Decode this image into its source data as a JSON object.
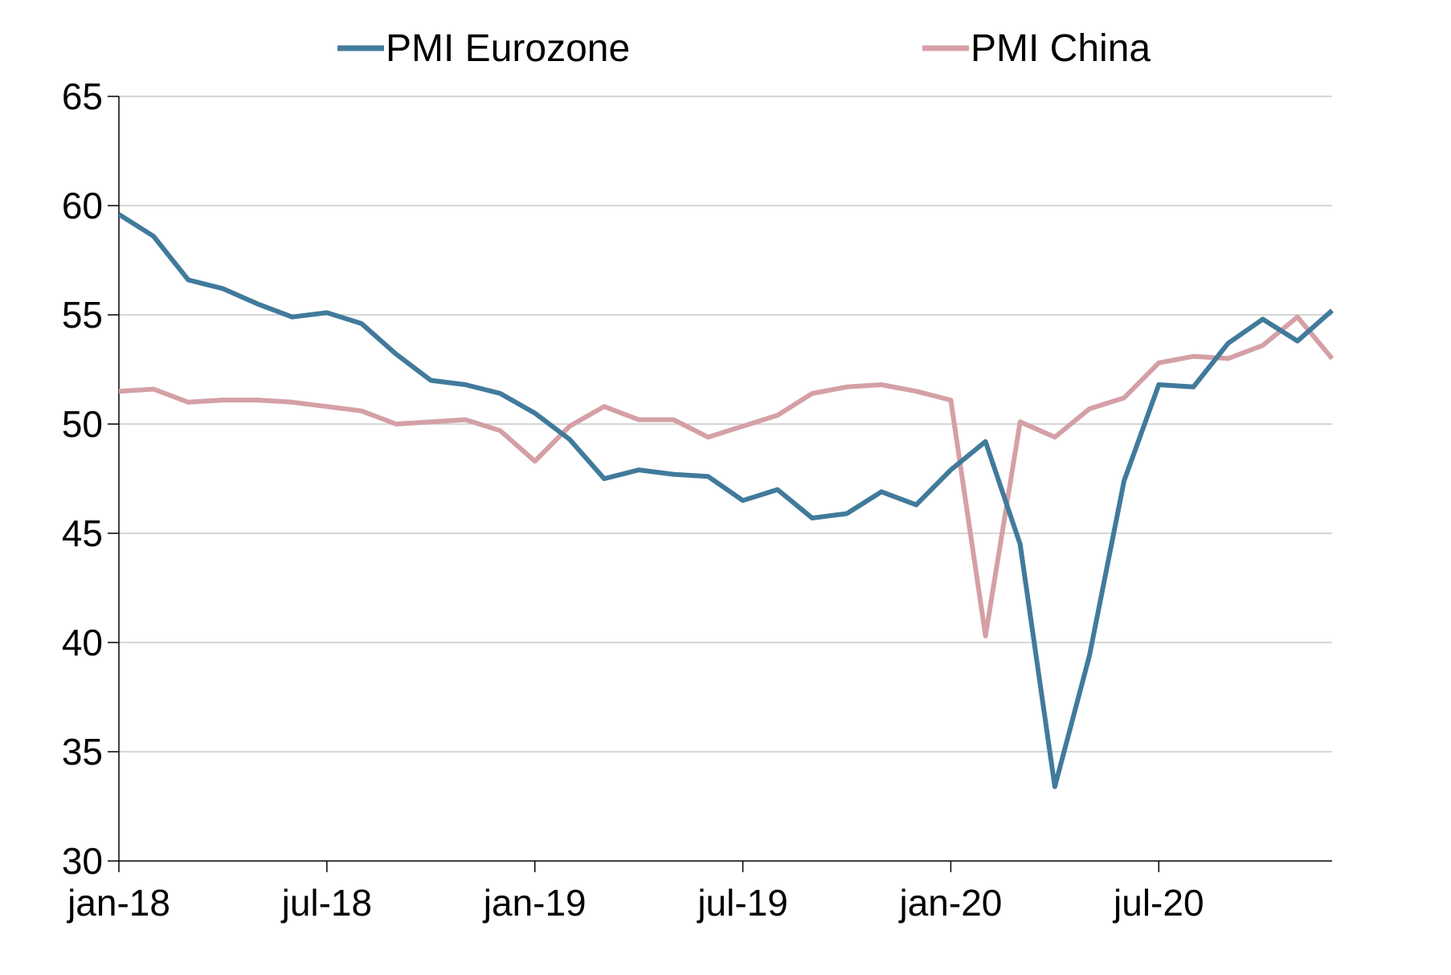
{
  "chart_data": {
    "type": "line",
    "title": "",
    "xlabel": "",
    "ylabel": "",
    "ylim": [
      30,
      65
    ],
    "yticks": [
      30,
      35,
      40,
      45,
      50,
      55,
      60,
      65
    ],
    "x_tick_labels": [
      "jan-18",
      "jul-18",
      "jan-19",
      "jul-19",
      "jan-20",
      "jul-20"
    ],
    "x_tick_months": [
      "2018-01",
      "2018-07",
      "2019-01",
      "2019-07",
      "2020-01",
      "2020-07"
    ],
    "x_range": [
      "2018-01",
      "2020-12"
    ],
    "grid": "horizontal",
    "legend_position": "top",
    "x": [
      "2018-01",
      "2018-02",
      "2018-03",
      "2018-04",
      "2018-05",
      "2018-06",
      "2018-07",
      "2018-08",
      "2018-09",
      "2018-10",
      "2018-11",
      "2018-12",
      "2019-01",
      "2019-02",
      "2019-03",
      "2019-04",
      "2019-05",
      "2019-06",
      "2019-07",
      "2019-08",
      "2019-09",
      "2019-10",
      "2019-11",
      "2019-12",
      "2020-01",
      "2020-02",
      "2020-03",
      "2020-04",
      "2020-05",
      "2020-06",
      "2020-07",
      "2020-08",
      "2020-09",
      "2020-10",
      "2020-11",
      "2020-12"
    ],
    "series": [
      {
        "name": "PMI Eurozone",
        "color": "#417A9B",
        "values": [
          59.6,
          58.6,
          56.6,
          56.2,
          55.5,
          54.9,
          55.1,
          54.6,
          53.2,
          52.0,
          51.8,
          51.4,
          50.5,
          49.3,
          47.5,
          47.9,
          47.7,
          47.6,
          46.5,
          47.0,
          45.7,
          45.9,
          46.9,
          46.3,
          47.9,
          49.2,
          44.5,
          33.4,
          39.4,
          47.4,
          51.8,
          51.7,
          53.7,
          54.8,
          53.8,
          55.2
        ]
      },
      {
        "name": "PMI China",
        "color": "#D4A0A6",
        "values": [
          51.5,
          51.6,
          51.0,
          51.1,
          51.1,
          51.0,
          50.8,
          50.6,
          50.0,
          50.1,
          50.2,
          49.7,
          48.3,
          49.9,
          50.8,
          50.2,
          50.2,
          49.4,
          49.9,
          50.4,
          51.4,
          51.7,
          51.8,
          51.5,
          51.1,
          40.3,
          50.1,
          49.4,
          50.7,
          51.2,
          52.8,
          53.1,
          53.0,
          53.6,
          54.9,
          53.0
        ]
      }
    ]
  }
}
